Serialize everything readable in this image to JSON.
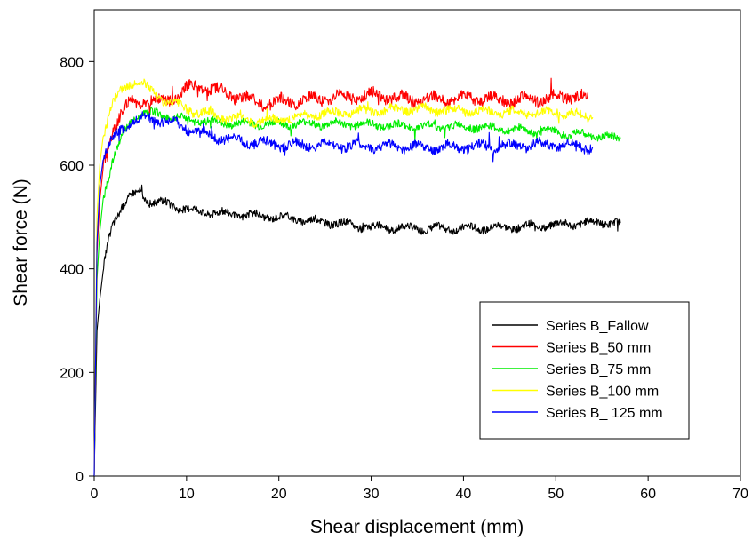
{
  "chart_data": {
    "type": "line",
    "title": "",
    "xlabel": "Shear displacement (mm)",
    "ylabel": "Shear force (N)",
    "xlim": [
      0,
      70
    ],
    "ylim": [
      0,
      900
    ],
    "xticks": [
      0,
      10,
      20,
      30,
      40,
      50,
      60,
      70
    ],
    "yticks": [
      0,
      200,
      400,
      600,
      800
    ],
    "grid": false,
    "legend_position": "bottom-right",
    "series": [
      {
        "name": "Series B_Fallow",
        "color": "#000000",
        "noise": 8,
        "points": [
          [
            0,
            0
          ],
          [
            0.3,
            280
          ],
          [
            0.6,
            340
          ],
          [
            1,
            400
          ],
          [
            1.5,
            450
          ],
          [
            2,
            490
          ],
          [
            3,
            520
          ],
          [
            4,
            540
          ],
          [
            5,
            550
          ],
          [
            6,
            530
          ],
          [
            8,
            525
          ],
          [
            10,
            515
          ],
          [
            12,
            510
          ],
          [
            15,
            505
          ],
          [
            20,
            500
          ],
          [
            25,
            490
          ],
          [
            30,
            480
          ],
          [
            35,
            478
          ],
          [
            40,
            478
          ],
          [
            45,
            480
          ],
          [
            50,
            485
          ],
          [
            55,
            490
          ],
          [
            57,
            488
          ]
        ]
      },
      {
        "name": "Series B_50 mm",
        "color": "#ff0000",
        "noise": 12,
        "points": [
          [
            0,
            0
          ],
          [
            0.3,
            430
          ],
          [
            0.6,
            530
          ],
          [
            1,
            600
          ],
          [
            2,
            670
          ],
          [
            3,
            700
          ],
          [
            4,
            720
          ],
          [
            5,
            725
          ],
          [
            7,
            720
          ],
          [
            9,
            735
          ],
          [
            11,
            755
          ],
          [
            13,
            745
          ],
          [
            15,
            735
          ],
          [
            18,
            720
          ],
          [
            22,
            725
          ],
          [
            26,
            730
          ],
          [
            30,
            735
          ],
          [
            35,
            725
          ],
          [
            40,
            730
          ],
          [
            45,
            725
          ],
          [
            50,
            730
          ],
          [
            52,
            735
          ],
          [
            53.5,
            730
          ]
        ]
      },
      {
        "name": "Series B_75 mm",
        "color": "#00ee00",
        "noise": 8,
        "points": [
          [
            0,
            0
          ],
          [
            0.3,
            380
          ],
          [
            0.6,
            470
          ],
          [
            1,
            540
          ],
          [
            2,
            610
          ],
          [
            3,
            655
          ],
          [
            4,
            685
          ],
          [
            5,
            700
          ],
          [
            6,
            700
          ],
          [
            8,
            695
          ],
          [
            10,
            688
          ],
          [
            15,
            680
          ],
          [
            20,
            680
          ],
          [
            25,
            680
          ],
          [
            30,
            678
          ],
          [
            35,
            675
          ],
          [
            40,
            675
          ],
          [
            45,
            670
          ],
          [
            50,
            663
          ],
          [
            55,
            655
          ],
          [
            57,
            650
          ]
        ]
      },
      {
        "name": "Series B_100 mm",
        "color": "#ffff00",
        "noise": 9,
        "points": [
          [
            0,
            0
          ],
          [
            0.3,
            500
          ],
          [
            0.6,
            600
          ],
          [
            1,
            660
          ],
          [
            2,
            720
          ],
          [
            3,
            745
          ],
          [
            4,
            760
          ],
          [
            5,
            762
          ],
          [
            6,
            745
          ],
          [
            8,
            722
          ],
          [
            10,
            708
          ],
          [
            12,
            700
          ],
          [
            15,
            690
          ],
          [
            18,
            685
          ],
          [
            20,
            688
          ],
          [
            25,
            700
          ],
          [
            30,
            705
          ],
          [
            35,
            708
          ],
          [
            40,
            705
          ],
          [
            45,
            702
          ],
          [
            50,
            700
          ],
          [
            54,
            695
          ]
        ]
      },
      {
        "name": "Series B_ 125 mm",
        "color": "#0000ff",
        "noise": 10,
        "points": [
          [
            0,
            0
          ],
          [
            0.3,
            450
          ],
          [
            0.6,
            560
          ],
          [
            1,
            615
          ],
          [
            2,
            650
          ],
          [
            3,
            672
          ],
          [
            4,
            682
          ],
          [
            5,
            688
          ],
          [
            6,
            690
          ],
          [
            8,
            685
          ],
          [
            10,
            672
          ],
          [
            12,
            660
          ],
          [
            15,
            648
          ],
          [
            20,
            640
          ],
          [
            25,
            638
          ],
          [
            30,
            636
          ],
          [
            35,
            635
          ],
          [
            40,
            635
          ],
          [
            45,
            638
          ],
          [
            50,
            640
          ],
          [
            54,
            635
          ]
        ]
      }
    ]
  }
}
